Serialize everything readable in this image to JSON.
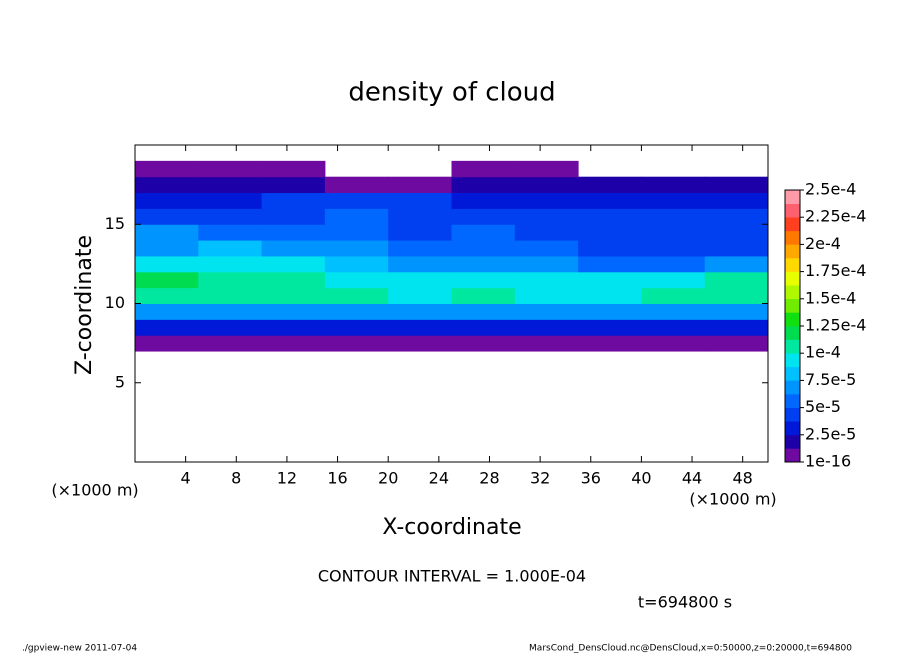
{
  "chart_data": {
    "type": "heatmap",
    "title": "density of cloud",
    "x_label": "X-coordinate",
    "y_label": "Z-coordinate",
    "x_unit": "(×1000 m)",
    "x": [
      2.5,
      7.5,
      12.5,
      17.5,
      22.5,
      27.5,
      32.5,
      37.5,
      42.5,
      47.5
    ],
    "y": [
      0.5,
      1.5,
      2.5,
      3.5,
      4.5,
      5.5,
      6.5,
      7.5,
      8.5,
      9.5,
      10.5,
      11.5,
      12.5,
      13.5,
      14.5,
      15.5,
      16.5,
      17.5,
      18.5,
      19.5
    ],
    "values": [
      [
        null,
        null,
        null,
        null,
        null,
        null,
        null,
        null,
        null,
        null
      ],
      [
        null,
        null,
        null,
        null,
        null,
        null,
        null,
        null,
        null,
        null
      ],
      [
        null,
        null,
        null,
        null,
        null,
        null,
        null,
        null,
        null,
        null
      ],
      [
        null,
        null,
        null,
        null,
        null,
        null,
        null,
        null,
        null,
        null
      ],
      [
        null,
        null,
        null,
        null,
        null,
        null,
        null,
        null,
        null,
        null
      ],
      [
        null,
        null,
        null,
        null,
        null,
        null,
        null,
        null,
        null,
        null
      ],
      [
        null,
        null,
        null,
        null,
        null,
        null,
        null,
        null,
        null,
        null
      ],
      [
        1e-05,
        1e-05,
        1e-05,
        1e-05,
        1e-05,
        1e-05,
        1e-05,
        1e-05,
        1e-05,
        1e-05
      ],
      [
        3e-05,
        3e-05,
        3e-05,
        3e-05,
        3e-05,
        3e-05,
        3e-05,
        3e-05,
        3e-05,
        3e-05
      ],
      [
        7e-05,
        7e-05,
        6.5e-05,
        7e-05,
        7e-05,
        7e-05,
        6.5e-05,
        7e-05,
        7.5e-05,
        7.5e-05
      ],
      [
        0.00011,
        0.00011,
        0.000105,
        0.000105,
        0.0001,
        0.000105,
        0.0001,
        0.0001,
        0.000105,
        0.00011
      ],
      [
        0.000115,
        0.00011,
        0.000105,
        0.0001,
        9.5e-05,
        9e-05,
        9.5e-05,
        9e-05,
        0.0001,
        0.000105
      ],
      [
        9e-05,
        9.5e-05,
        9e-05,
        8e-05,
        7.5e-05,
        7.5e-05,
        7e-05,
        6e-05,
        6e-05,
        6.5e-05
      ],
      [
        7e-05,
        8e-05,
        7.5e-05,
        6.5e-05,
        6e-05,
        6e-05,
        5.5e-05,
        4.5e-05,
        4.5e-05,
        4.5e-05
      ],
      [
        6.5e-05,
        6e-05,
        6e-05,
        5.5e-05,
        5e-05,
        5.5e-05,
        5e-05,
        4.5e-05,
        4e-05,
        4e-05
      ],
      [
        5e-05,
        5e-05,
        5e-05,
        5.5e-05,
        5e-05,
        5e-05,
        5e-05,
        4.5e-05,
        4e-05,
        4e-05
      ],
      [
        3.5e-05,
        3.5e-05,
        4e-05,
        4.5e-05,
        4e-05,
        3.5e-05,
        3.5e-05,
        3.5e-05,
        3.5e-05,
        3.5e-05
      ],
      [
        2e-05,
        2e-05,
        2e-05,
        1e-05,
        1e-05,
        2e-05,
        2e-05,
        2e-05,
        2e-05,
        2e-05
      ],
      [
        1e-05,
        1e-05,
        1e-05,
        null,
        null,
        1e-05,
        1e-05,
        null,
        null,
        null
      ],
      [
        null,
        null,
        null,
        null,
        null,
        null,
        null,
        null,
        null,
        null
      ]
    ],
    "xlim": [
      0,
      50
    ],
    "ylim": [
      0,
      20
    ],
    "xticks": [
      4,
      8,
      12,
      16,
      20,
      24,
      28,
      32,
      36,
      40,
      44,
      48
    ],
    "yticks": [
      5,
      10,
      15
    ],
    "clim": [
      1e-16,
      0.00025
    ],
    "colorbar_ticks": [
      {
        "value": 1e-16,
        "label": "1e-16"
      },
      {
        "value": 2.5e-05,
        "label": "2.5e-5"
      },
      {
        "value": 5e-05,
        "label": "5e-5"
      },
      {
        "value": 7.5e-05,
        "label": "7.5e-5"
      },
      {
        "value": 0.0001,
        "label": "1e-4"
      },
      {
        "value": 0.000125,
        "label": "1.25e-4"
      },
      {
        "value": 0.00015,
        "label": "1.5e-4"
      },
      {
        "value": 0.000175,
        "label": "1.75e-4"
      },
      {
        "value": 0.0002,
        "label": "2e-4"
      },
      {
        "value": 0.000225,
        "label": "2.25e-4"
      },
      {
        "value": 0.00025,
        "label": "2.5e-4"
      }
    ],
    "colors": [
      "#6e0aa0",
      "#1e00a8",
      "#0018d8",
      "#0040f0",
      "#0068ff",
      "#0094ff",
      "#00c0ff",
      "#00e4f0",
      "#00e8a0",
      "#00dc50",
      "#10e010",
      "#70ec00",
      "#b0f800",
      "#e8ff00",
      "#ffd800",
      "#ffa800",
      "#ff7800",
      "#ff4020",
      "#ff6070",
      "#ff9aa8"
    ],
    "contour_note": "CONTOUR INTERVAL = 1.000E-04",
    "time_note": "t=694800 s",
    "footer_left": "./gpview-new  2011-07-04",
    "footer_right": "MarsCond_DensCloud.nc@DensCloud,x=0:50000,z=0:20000,t=694800"
  }
}
